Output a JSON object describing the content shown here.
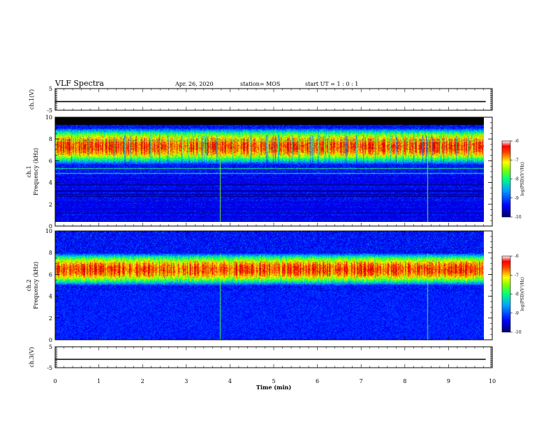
{
  "header": {
    "title": "VLF Spectra",
    "date": "Apr. 26, 2020",
    "station": "station= MOS",
    "start": "start UT =  1 : 0 : 1"
  },
  "chart_data": [
    {
      "type": "line",
      "name": "ch1-voltage",
      "ylabel": "ch.1(V)",
      "ylim": [
        -5,
        5
      ],
      "yticks": [
        "5",
        "-5"
      ],
      "xlim": [
        0,
        10
      ],
      "x": [
        0,
        9.85
      ],
      "y": [
        -1.0,
        -1.0
      ]
    },
    {
      "type": "heatmap",
      "name": "ch1-spectrogram",
      "ylabel": "ch.1\nFrequency (kHz)",
      "ylim": [
        0,
        10
      ],
      "yticks": [
        "0",
        "2",
        "4",
        "6",
        "8",
        "10"
      ],
      "xlim": [
        0,
        10
      ],
      "data_xmax": 9.85,
      "band_kHz": [
        5.5,
        9.0
      ],
      "saturated_above_kHz": 9.3,
      "spike_times_min": [
        3.78,
        8.55
      ],
      "colorbar": {
        "label": "log(PSD)(V²/Hz)",
        "range": [
          -10,
          -6
        ],
        "ticks": [
          "-6",
          "-7",
          "-8",
          "-9",
          "-10"
        ]
      }
    },
    {
      "type": "heatmap",
      "name": "ch2-spectrogram",
      "ylabel": "ch.2\nFrequency (kHz)",
      "ylim": [
        0,
        10
      ],
      "yticks": [
        "0",
        "2",
        "4",
        "6",
        "8",
        "10"
      ],
      "xlim": [
        0,
        10
      ],
      "data_xmax": 9.85,
      "band_kHz": [
        5.0,
        8.0
      ],
      "spike_times_min": [
        3.78,
        8.55
      ],
      "colorbar": {
        "label": "log(PSD)(V²/Hz)",
        "range": [
          -10,
          -6
        ],
        "ticks": [
          "-6",
          "-7",
          "-8",
          "-9",
          "-10"
        ]
      }
    },
    {
      "type": "line",
      "name": "ch3-voltage",
      "ylabel": "ch.3(V)",
      "ylim": [
        -5,
        5
      ],
      "yticks": [
        "5",
        "-5"
      ],
      "xlim": [
        0,
        10
      ],
      "x": [
        0,
        9.85
      ],
      "y": [
        -1.0,
        -1.0
      ]
    }
  ],
  "xaxis": {
    "label": "Time (min)",
    "ticks": [
      "0",
      "1",
      "2",
      "3",
      "4",
      "5",
      "6",
      "7",
      "8",
      "9",
      "10"
    ]
  },
  "colors": {
    "black": "#000000",
    "cmap": [
      "#00007a",
      "#0000ff",
      "#0080ff",
      "#00ffff",
      "#80ff00",
      "#ffff00",
      "#ff8000",
      "#ff0000",
      "#ffffff"
    ]
  }
}
